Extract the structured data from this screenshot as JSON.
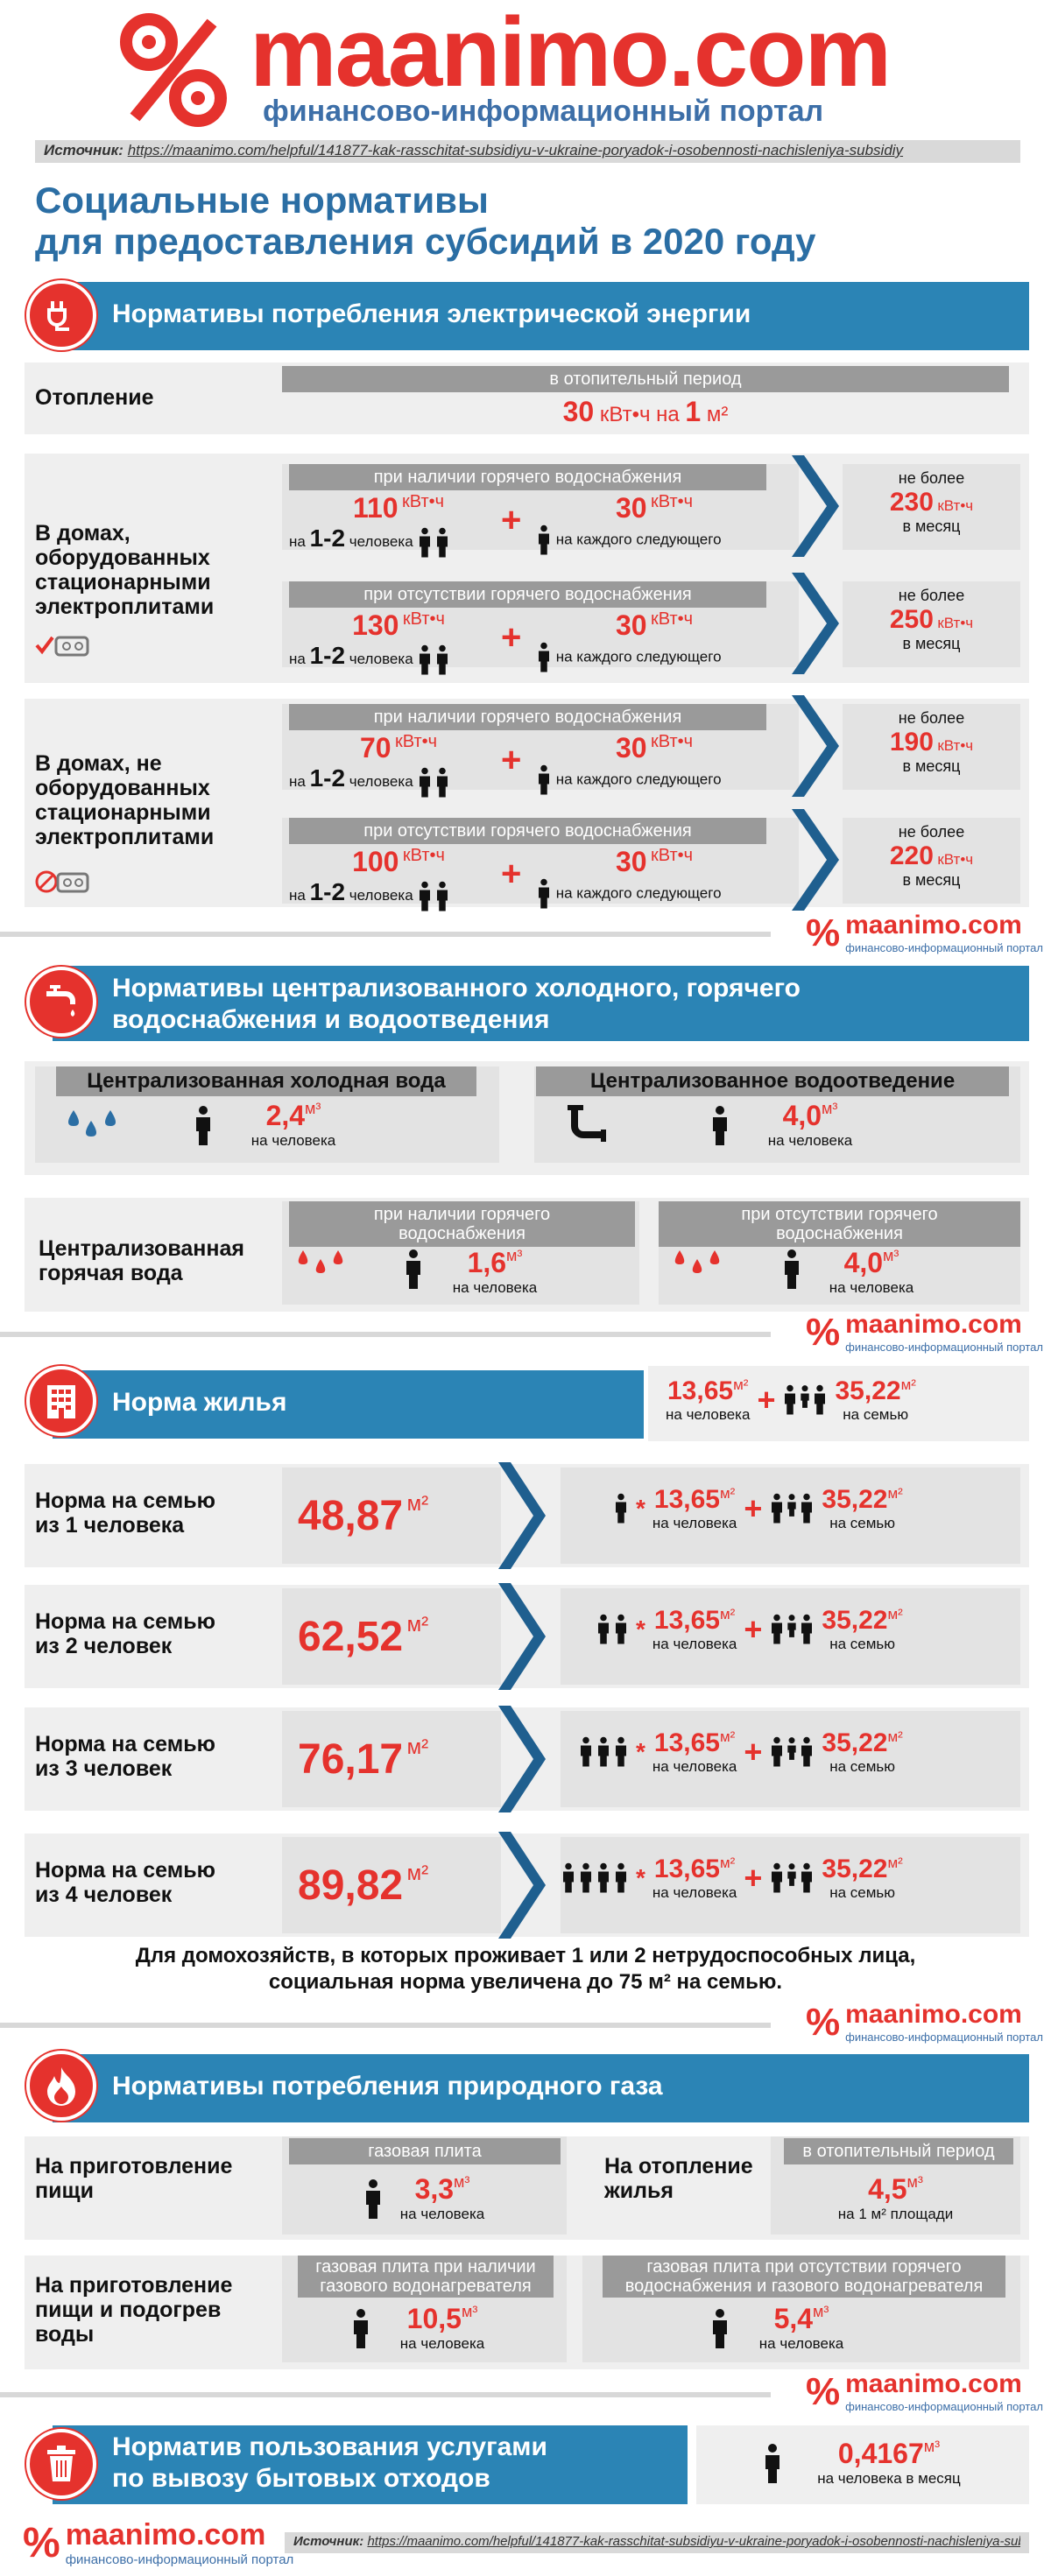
{
  "header": {
    "logo_text": "maanimo.com",
    "tagline": "финансово-информационный портал",
    "source_label": "Источник:",
    "source_url": "https://maanimo.com/helpful/141877-kak-rasschitat-subsidiyu-v-ukraine-poryadok-i-osobennosti-nachisleniya-subsidiy",
    "title1": "Социальные нормативы",
    "title2": "для предоставления субсидий в 2020 году"
  },
  "colors": {
    "red": "#e5322d",
    "blue": "#2b84b5",
    "dark_blue": "#1f5f8f",
    "gray": "#efefef"
  },
  "elec": {
    "title": "Нормативы потребления электрической энергии",
    "heat_label": "Отопление",
    "heat_pill": "в отопительный период",
    "heat_value": "30",
    "heat_unit": "кВт•ч на",
    "heat_area": "1",
    "heat_area_unit": "м²",
    "group1_label": "В домах, оборудованных стационарными электроплитами",
    "group2_label": "В домах, не оборудованных стационарными электроплитами",
    "with_hot": "при наличии горячего водоснабжения",
    "without_hot": "при отсутствии горячего водоснабжения",
    "unit": "кВт•ч",
    "na": "на",
    "people_12": "1-2",
    "chelovek": "человека",
    "plus_value": "30",
    "each_next": "на каждого следующего",
    "not_more": "не более",
    "per_month": "в месяц",
    "rows": [
      {
        "base": "110",
        "max": "230"
      },
      {
        "base": "130",
        "max": "250"
      },
      {
        "base": "70",
        "max": "190"
      },
      {
        "base": "100",
        "max": "220"
      }
    ]
  },
  "water": {
    "title1": "Нормативы централизованного холодного, горячего",
    "title2": "водоснабжения и водоотведения",
    "cold_label": "Централизованная холодная вода",
    "cold_value": "2,4",
    "drain_label": "Централизованное водоотведение",
    "drain_value": "4,0",
    "unit": "м³",
    "per_person": "на человека",
    "hot_label": "Централизованная горячая вода",
    "hot_with": "при наличии горячего водоснабжения",
    "hot_with_value": "1,6",
    "hot_without": "при отсутствии горячего водоснабжения",
    "hot_without_value": "4,0"
  },
  "housing": {
    "title": "Норма жилья",
    "per_person_value": "13,65",
    "family_value": "35,22",
    "unit": "м²",
    "per_person": "на человека",
    "per_family": "на семью",
    "rows": [
      {
        "label1": "Норма на семью",
        "label2": "из 1 человека",
        "value": "48,87"
      },
      {
        "label1": "Норма на семью",
        "label2": "из 2 человек",
        "value": "62,52"
      },
      {
        "label1": "Норма на семью",
        "label2": "из 3 человек",
        "value": "76,17"
      },
      {
        "label1": "Норма на семью",
        "label2": "из 4 человек",
        "value": "89,82"
      }
    ],
    "note1": "Для домохозяйств, в которых проживает 1 или 2 нетрудоспособных лица,",
    "note2": "социальная норма увеличена до 75 м² на семью."
  },
  "gas": {
    "title": "Нормативы потребления природного газа",
    "cook_label": "На приготовление пищи",
    "cook_pill": "газовая плита",
    "cook_value": "3,3",
    "heat_label": "На отопление жилья",
    "heat_pill": "в отопительный период",
    "heat_value": "4,5",
    "heat_per": "на 1 м² площади",
    "cookwater_label": "На приготовление пищи и подогрев воды",
    "cw_with_pill": "газовая плита при наличии газового водонагревателя",
    "cw_with_value": "10,5",
    "cw_without_pill": "газовая плита при отсутствии горячего водоснабжения и газового водонагревателя",
    "cw_without_value": "5,4",
    "unit": "м³",
    "per_person": "на человека"
  },
  "waste": {
    "title1": "Норматив пользования услугами",
    "title2": "по вывозу бытовых отходов",
    "value": "0,4167",
    "unit": "м³",
    "per": "на человека в месяц"
  },
  "footer": {
    "logo_text": "maanimo.com",
    "tagline": "финансово-информационный портал",
    "source_label": "Источник:",
    "source_url": "https://maanimo.com/helpful/141877-kak-rasschitat-subsidiyu-v-ukraine-poryadok-i-osobennosti-nachisleniya-subsidiy"
  }
}
